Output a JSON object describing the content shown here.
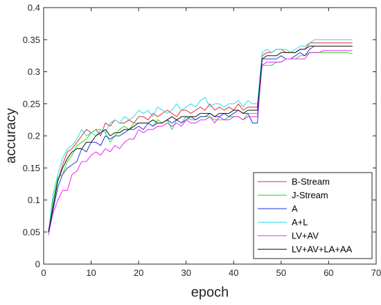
{
  "chart_data": {
    "type": "line",
    "xlabel": "epoch",
    "ylabel": "accuracy",
    "xlim": [
      0,
      70
    ],
    "ylim": [
      0,
      0.4
    ],
    "xticks": [
      0,
      10,
      20,
      30,
      40,
      50,
      60,
      70
    ],
    "yticks": [
      0,
      0.05,
      0.1,
      0.15,
      0.2,
      0.25,
      0.3,
      0.35,
      0.4
    ],
    "xtick_labels": [
      "0",
      "10",
      "20",
      "30",
      "40",
      "50",
      "60",
      "70"
    ],
    "ytick_labels": [
      "0",
      "0.05",
      "0.1",
      "0.15",
      "0.2",
      "0.25",
      "0.3",
      "0.35",
      "0.4"
    ],
    "grid": false,
    "legend_position": "bottom-right",
    "x": [
      1,
      2,
      3,
      4,
      5,
      6,
      7,
      8,
      9,
      10,
      11,
      12,
      13,
      14,
      15,
      16,
      17,
      18,
      19,
      20,
      21,
      22,
      23,
      24,
      25,
      26,
      27,
      28,
      29,
      30,
      31,
      32,
      33,
      34,
      35,
      36,
      37,
      38,
      39,
      40,
      41,
      42,
      43,
      44,
      45,
      46,
      47,
      48,
      49,
      50,
      51,
      52,
      53,
      54,
      55,
      56,
      57,
      58,
      59,
      60,
      61,
      62,
      63,
      64,
      65
    ],
    "series": [
      {
        "name": "B-Stream",
        "color": "#e8262a",
        "values": [
          0.05,
          0.1,
          0.13,
          0.155,
          0.175,
          0.18,
          0.19,
          0.2,
          0.21,
          0.205,
          0.21,
          0.2,
          0.22,
          0.215,
          0.225,
          0.22,
          0.22,
          0.225,
          0.22,
          0.23,
          0.23,
          0.225,
          0.235,
          0.23,
          0.235,
          0.24,
          0.235,
          0.23,
          0.24,
          0.24,
          0.235,
          0.24,
          0.245,
          0.24,
          0.25,
          0.24,
          0.245,
          0.24,
          0.245,
          0.24,
          0.25,
          0.24,
          0.245,
          0.245,
          0.245,
          0.325,
          0.33,
          0.33,
          0.335,
          0.335,
          0.33,
          0.33,
          0.33,
          0.335,
          0.335,
          0.345,
          0.345,
          0.345,
          0.345,
          0.345,
          0.345,
          0.345,
          0.345,
          0.345,
          0.345
        ]
      },
      {
        "name": "J-Stream",
        "color": "#22dd22",
        "values": [
          0.05,
          0.1,
          0.135,
          0.14,
          0.16,
          0.17,
          0.185,
          0.19,
          0.195,
          0.205,
          0.21,
          0.21,
          0.205,
          0.19,
          0.2,
          0.21,
          0.215,
          0.21,
          0.22,
          0.22,
          0.22,
          0.22,
          0.215,
          0.225,
          0.22,
          0.225,
          0.21,
          0.225,
          0.22,
          0.23,
          0.225,
          0.225,
          0.23,
          0.23,
          0.23,
          0.225,
          0.225,
          0.225,
          0.23,
          0.23,
          0.23,
          0.225,
          0.235,
          0.235,
          0.235,
          0.31,
          0.31,
          0.31,
          0.315,
          0.315,
          0.32,
          0.32,
          0.32,
          0.325,
          0.325,
          0.33,
          0.33,
          0.33,
          0.33,
          0.33,
          0.33,
          0.33,
          0.33,
          0.33,
          0.328
        ]
      },
      {
        "name": "A",
        "color": "#2233dd",
        "values": [
          0.05,
          0.085,
          0.12,
          0.14,
          0.15,
          0.155,
          0.16,
          0.18,
          0.175,
          0.19,
          0.19,
          0.185,
          0.2,
          0.195,
          0.2,
          0.2,
          0.205,
          0.21,
          0.21,
          0.215,
          0.21,
          0.22,
          0.215,
          0.22,
          0.22,
          0.225,
          0.22,
          0.225,
          0.22,
          0.225,
          0.23,
          0.225,
          0.23,
          0.23,
          0.235,
          0.23,
          0.23,
          0.235,
          0.23,
          0.235,
          0.24,
          0.235,
          0.235,
          0.22,
          0.22,
          0.32,
          0.32,
          0.32,
          0.32,
          0.325,
          0.32,
          0.32,
          0.325,
          0.33,
          0.325,
          0.335,
          0.34,
          0.34,
          0.34,
          0.34,
          0.34,
          0.34,
          0.34,
          0.34,
          0.34
        ]
      },
      {
        "name": "A+L",
        "color": "#22ddee",
        "values": [
          0.05,
          0.11,
          0.14,
          0.165,
          0.18,
          0.185,
          0.195,
          0.21,
          0.2,
          0.205,
          0.2,
          0.21,
          0.205,
          0.22,
          0.225,
          0.22,
          0.23,
          0.225,
          0.23,
          0.24,
          0.235,
          0.24,
          0.23,
          0.245,
          0.24,
          0.235,
          0.24,
          0.25,
          0.24,
          0.245,
          0.25,
          0.245,
          0.255,
          0.26,
          0.245,
          0.25,
          0.25,
          0.245,
          0.25,
          0.25,
          0.255,
          0.245,
          0.255,
          0.25,
          0.25,
          0.33,
          0.335,
          0.33,
          0.335,
          0.335,
          0.335,
          0.33,
          0.335,
          0.34,
          0.34,
          0.345,
          0.35,
          0.35,
          0.35,
          0.35,
          0.35,
          0.35,
          0.35,
          0.35,
          0.35
        ]
      },
      {
        "name": "LV+AV",
        "color": "#ee22ee",
        "values": [
          0.045,
          0.08,
          0.1,
          0.115,
          0.115,
          0.14,
          0.145,
          0.16,
          0.16,
          0.17,
          0.175,
          0.17,
          0.18,
          0.175,
          0.185,
          0.18,
          0.19,
          0.195,
          0.195,
          0.21,
          0.205,
          0.21,
          0.21,
          0.215,
          0.215,
          0.22,
          0.215,
          0.22,
          0.215,
          0.225,
          0.22,
          0.22,
          0.225,
          0.225,
          0.23,
          0.22,
          0.23,
          0.225,
          0.225,
          0.23,
          0.23,
          0.225,
          0.23,
          0.23,
          0.23,
          0.31,
          0.315,
          0.315,
          0.315,
          0.315,
          0.32,
          0.32,
          0.32,
          0.32,
          0.32,
          0.33,
          0.33,
          0.33,
          0.333,
          0.333,
          0.333,
          0.333,
          0.333,
          0.333,
          0.333
        ]
      },
      {
        "name": "LV+AV+LA+AA",
        "color": "#111111",
        "values": [
          0.05,
          0.09,
          0.13,
          0.15,
          0.165,
          0.175,
          0.18,
          0.18,
          0.19,
          0.19,
          0.2,
          0.205,
          0.21,
          0.2,
          0.205,
          0.205,
          0.21,
          0.21,
          0.215,
          0.22,
          0.22,
          0.22,
          0.225,
          0.22,
          0.22,
          0.225,
          0.23,
          0.225,
          0.23,
          0.23,
          0.23,
          0.23,
          0.235,
          0.235,
          0.235,
          0.23,
          0.235,
          0.235,
          0.235,
          0.24,
          0.24,
          0.235,
          0.24,
          0.24,
          0.24,
          0.32,
          0.325,
          0.325,
          0.325,
          0.33,
          0.33,
          0.33,
          0.33,
          0.335,
          0.335,
          0.34,
          0.34,
          0.34,
          0.34,
          0.34,
          0.34,
          0.34,
          0.34,
          0.34,
          0.34
        ]
      }
    ]
  }
}
